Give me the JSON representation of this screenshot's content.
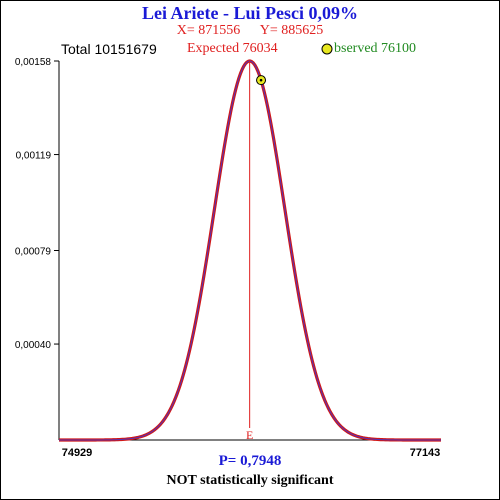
{
  "title": "Lei Ariete - Lui Pesci  0,09%",
  "x_label": "X= 871556",
  "y_label": "Y= 885625",
  "total_label": "Total  10151679",
  "expected_label": "Expected  76034",
  "observed_label": "bserved  76100",
  "p_value_label": "P= 0,7948",
  "verdict": "NOT statistically significant",
  "expected_marker": "E",
  "colors": {
    "title": "#1a1ad6",
    "red": "#e02020",
    "green": "#228b22",
    "curve": "#d01818",
    "curve_inner": "#3a3ad8",
    "marker_fill": "#e8e820"
  },
  "chart_data": {
    "type": "line",
    "distribution": "normal",
    "mean": 76034,
    "observed": 76100,
    "xlim": [
      74929,
      77143
    ],
    "ylim": [
      0,
      0.00158
    ],
    "x_tick_labels": [
      "74929",
      "77143"
    ],
    "y_ticks": [
      0.0004,
      0.00079,
      0.00119,
      0.00158
    ],
    "y_tick_labels": [
      "0,00040",
      "0,00079",
      "0,00119",
      "0,00158"
    ],
    "peak": 0.00158
  }
}
